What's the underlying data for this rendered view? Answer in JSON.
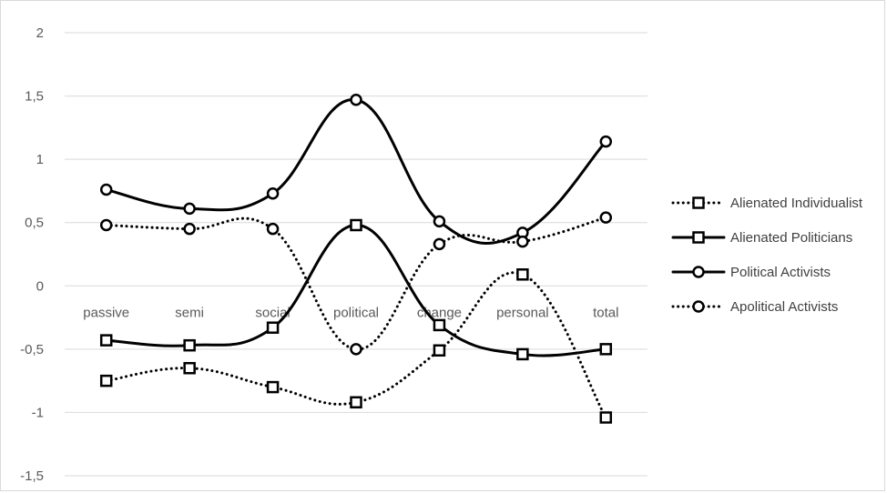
{
  "chart_data": {
    "type": "line",
    "title": "",
    "xlabel": "",
    "ylabel": "",
    "categories": [
      "passive",
      "semi",
      "social",
      "political",
      "change",
      "personal",
      "total"
    ],
    "ylim": [
      -1.5,
      2
    ],
    "yticks": [
      "2",
      "1,5",
      "1",
      "0,5",
      "0",
      "-0,5",
      "-1",
      "-1,5"
    ],
    "ytick_values": [
      2,
      1.5,
      1,
      0.5,
      0,
      -0.5,
      -1,
      -1.5
    ],
    "grid": true,
    "legend_position": "right",
    "series": [
      {
        "name": "Alienated Individualist",
        "values": [
          -0.75,
          -0.65,
          -0.8,
          -0.92,
          -0.51,
          0.09,
          -1.04
        ],
        "line_style": "dotted",
        "marker": "square",
        "color": "#000000"
      },
      {
        "name": "Alienated Politicians",
        "values": [
          -0.43,
          -0.47,
          -0.33,
          0.48,
          -0.31,
          -0.54,
          -0.5
        ],
        "line_style": "solid",
        "marker": "square",
        "color": "#000000"
      },
      {
        "name": "Political Activists",
        "values": [
          0.76,
          0.61,
          0.73,
          1.47,
          0.51,
          0.42,
          1.14
        ],
        "line_style": "solid",
        "marker": "circle",
        "color": "#000000"
      },
      {
        "name": "Apolitical Activists",
        "values": [
          0.48,
          0.45,
          0.45,
          -0.5,
          0.33,
          0.35,
          0.54
        ],
        "line_style": "dotted",
        "marker": "circle",
        "color": "#000000"
      }
    ]
  }
}
